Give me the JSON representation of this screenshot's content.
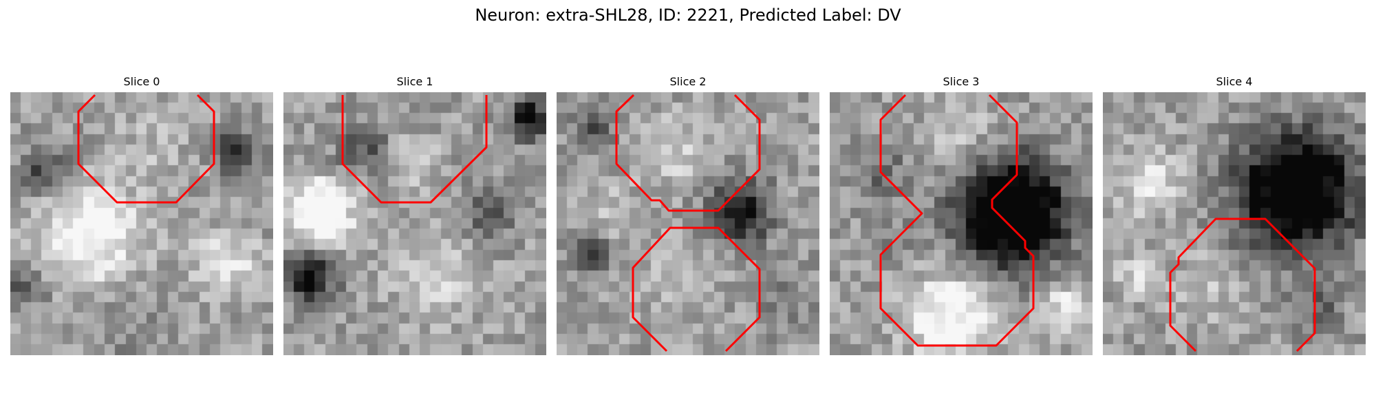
{
  "figure": {
    "title": "Neuron: extra-SHL28, ID: 2221, Predicted Label: DV"
  },
  "slices": [
    {
      "title": "Slice 0"
    },
    {
      "title": "Slice 1"
    },
    {
      "title": "Slice 2"
    },
    {
      "title": "Slice 3"
    },
    {
      "title": "Slice 4"
    }
  ],
  "style": {
    "contour_color": "#ff0000",
    "colormap": "grayscale"
  }
}
